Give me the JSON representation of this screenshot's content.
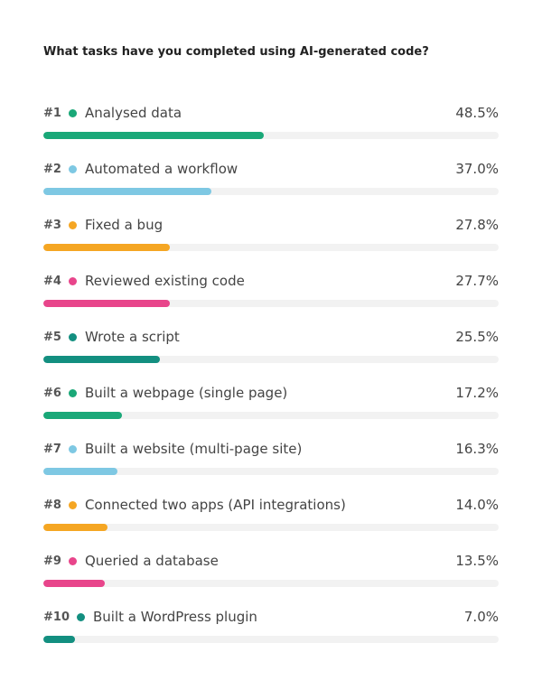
{
  "title": "What tasks have you completed using AI-generated code?",
  "chart_data": {
    "type": "bar",
    "orientation": "horizontal",
    "title": "What tasks have you completed using AI-generated code?",
    "xlim": [
      0,
      100
    ],
    "unit": "%",
    "items": [
      {
        "rank": "#1",
        "label": "Analysed data",
        "value": 48.5,
        "display": "48.5%",
        "color": "#1aa878"
      },
      {
        "rank": "#2",
        "label": "Automated a workflow",
        "value": 37.0,
        "display": "37.0%",
        "color": "#7ec8e3"
      },
      {
        "rank": "#3",
        "label": "Fixed a bug",
        "value": 27.8,
        "display": "27.8%",
        "color": "#f5a623"
      },
      {
        "rank": "#4",
        "label": "Reviewed existing code",
        "value": 27.7,
        "display": "27.7%",
        "color": "#e8458b"
      },
      {
        "rank": "#5",
        "label": "Wrote a script",
        "value": 25.5,
        "display": "25.5%",
        "color": "#138f80"
      },
      {
        "rank": "#6",
        "label": "Built a webpage (single page)",
        "value": 17.2,
        "display": "17.2%",
        "color": "#1aa878"
      },
      {
        "rank": "#7",
        "label": "Built a website (multi-page site)",
        "value": 16.3,
        "display": "16.3%",
        "color": "#7ec8e3"
      },
      {
        "rank": "#8",
        "label": "Connected two apps (API integrations)",
        "value": 14.0,
        "display": "14.0%",
        "color": "#f5a623"
      },
      {
        "rank": "#9",
        "label": "Queried a database",
        "value": 13.5,
        "display": "13.5%",
        "color": "#e8458b"
      },
      {
        "rank": "#10",
        "label": "Built a WordPress plugin",
        "value": 7.0,
        "display": "7.0%",
        "color": "#138f80"
      }
    ]
  }
}
